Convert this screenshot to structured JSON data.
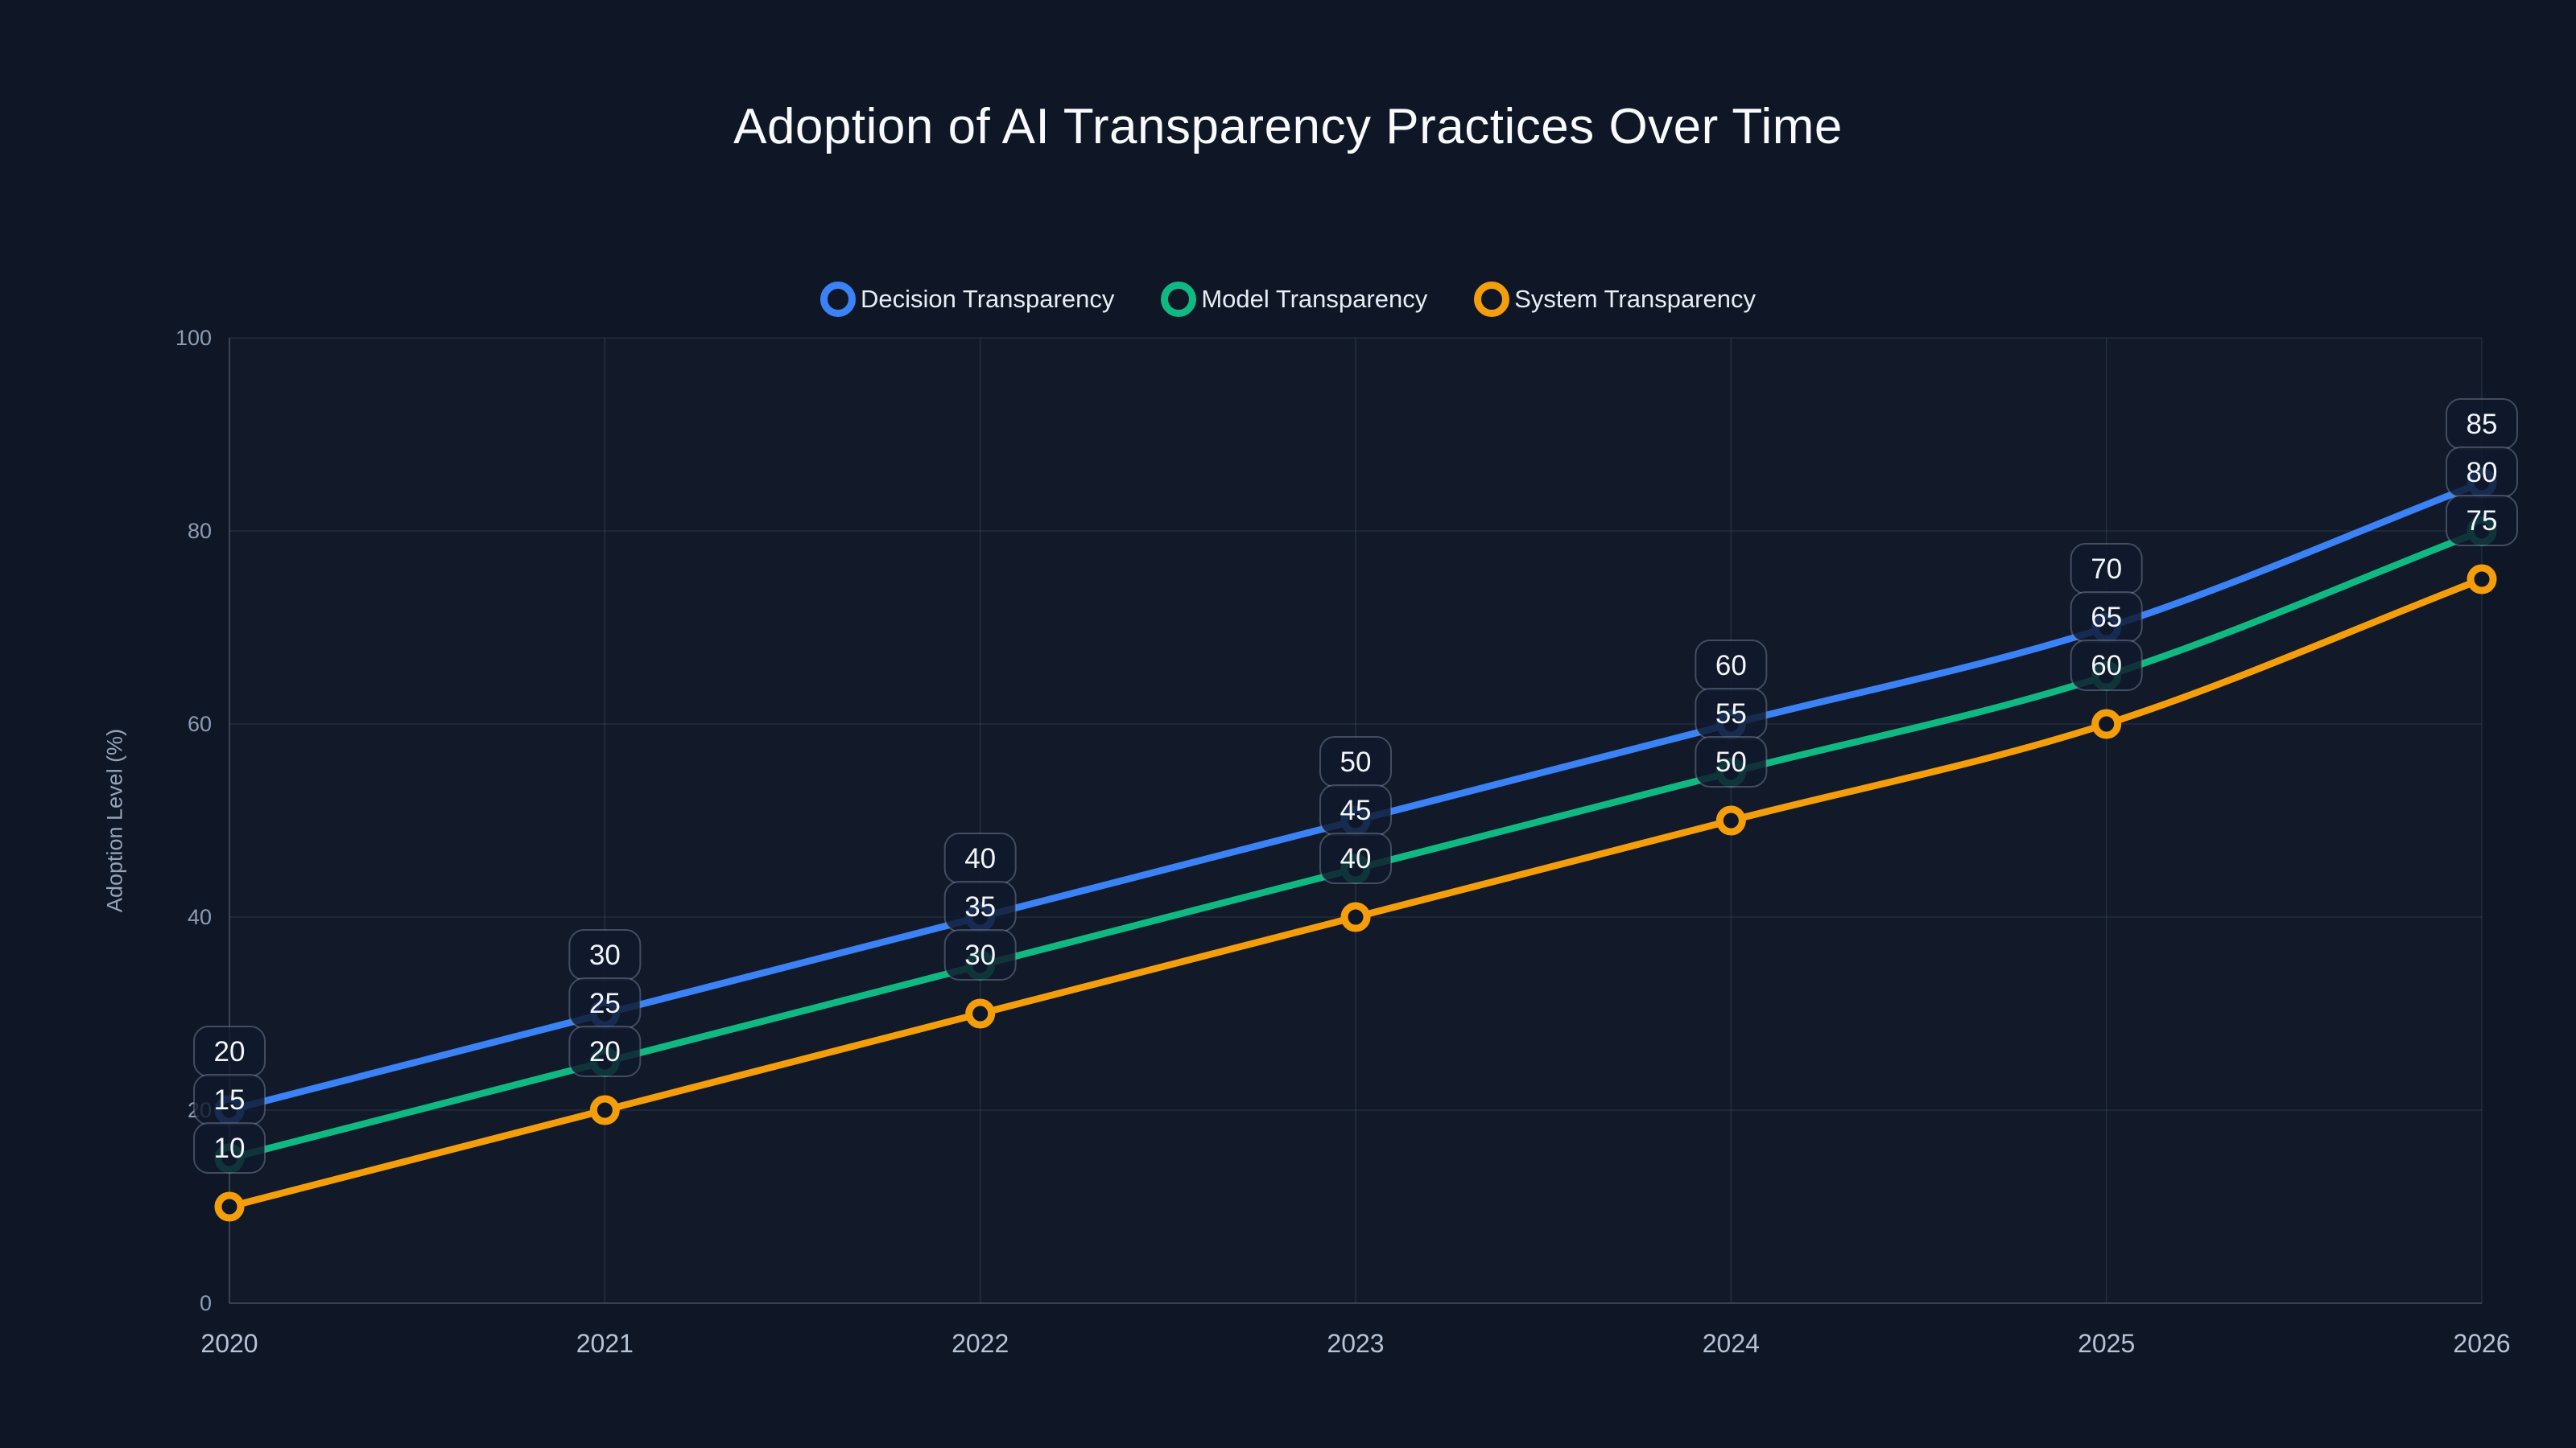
{
  "colors": {
    "background": "#0f1727",
    "plot_area_tint": "rgba(255,255,255,0.015)",
    "grid": "rgba(148,163,184,0.14)",
    "axis": "rgba(148,163,184,0.30)",
    "y_tick_text": "#8d9cb3",
    "x_tick_text": "#b6c3d6",
    "title_text": "#f8fafc",
    "legend_text": "#e8edf4",
    "label_box_fill": "rgba(16,25,44,0.82)",
    "label_box_border": "rgba(148,163,184,0.38)",
    "label_text": "#f2f5f9"
  },
  "chart_data": {
    "type": "line",
    "title": "Adoption of AI Transparency Practices Over Time",
    "x": [
      2020,
      2021,
      2022,
      2023,
      2024,
      2025,
      2026
    ],
    "series": [
      {
        "name": "Decision Transparency",
        "color": "#3b82f6",
        "values": [
          20,
          30,
          40,
          50,
          60,
          70,
          85
        ]
      },
      {
        "name": "Model Transparency",
        "color": "#10b981",
        "values": [
          15,
          25,
          35,
          45,
          55,
          65,
          80
        ]
      },
      {
        "name": "System Transparency",
        "color": "#f59e0b",
        "values": [
          10,
          20,
          30,
          40,
          50,
          60,
          75
        ]
      }
    ],
    "xlabel": "",
    "ylabel": "Adoption Level (%)",
    "ylim": [
      0,
      100
    ],
    "yticks": [
      0,
      20,
      40,
      60,
      80,
      100
    ],
    "grid": true,
    "curve": "monotone",
    "point_labels": true,
    "legend_position": "top-center"
  }
}
